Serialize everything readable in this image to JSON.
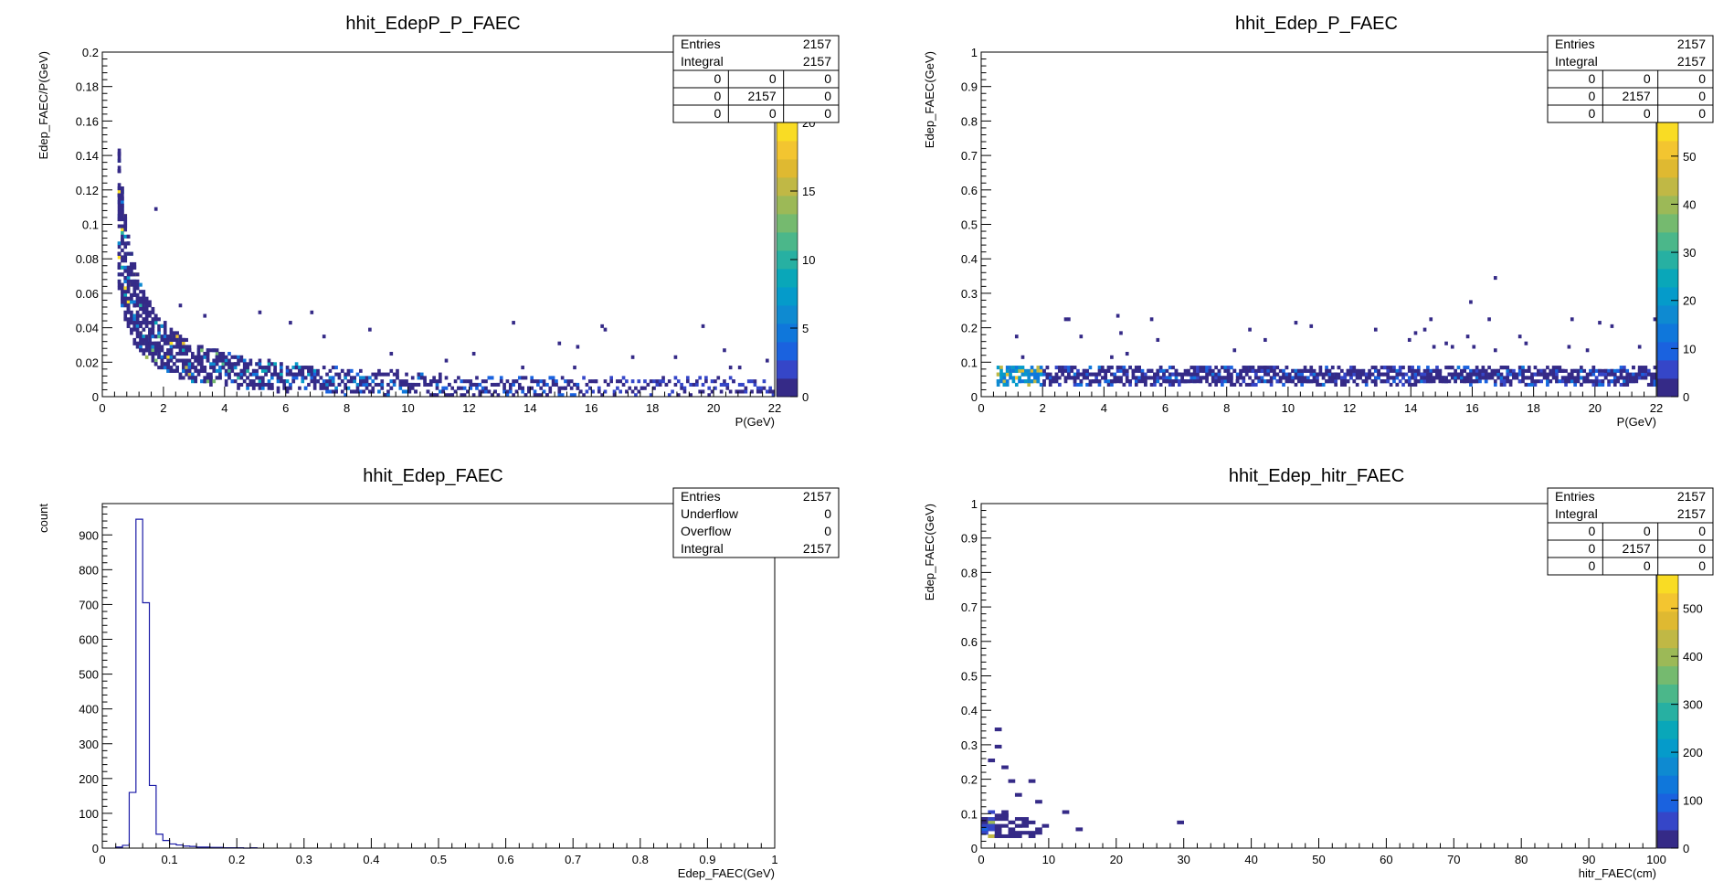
{
  "colors": {
    "hist_line": "#1a1aa6",
    "palette": [
      "#352a87",
      "#3546c8",
      "#1a62df",
      "#0f77db",
      "#0e8ad1",
      "#059bca",
      "#09a7b9",
      "#27b0a2",
      "#4bb78a",
      "#75ba6f",
      "#9cb957",
      "#c0b845",
      "#dfb931",
      "#f3c530",
      "#f9dc24"
    ]
  },
  "chart_data": [
    {
      "id": "edepP-p",
      "type": "heatmap",
      "title": "hhit_EdepP_P_FAEC",
      "xlabel": "P(GeV)",
      "ylabel": "Edep_FAEC/P(GeV)",
      "xlim": [
        0,
        22
      ],
      "ylim": [
        0,
        0.2
      ],
      "xticks": [
        "0",
        "2",
        "4",
        "6",
        "8",
        "10",
        "12",
        "14",
        "16",
        "18",
        "20",
        "22"
      ],
      "yticks": [
        "0",
        "0.02",
        "0.04",
        "0.06",
        "0.08",
        "0.1",
        "0.12",
        "0.14",
        "0.16",
        "0.18",
        "0.2"
      ],
      "zlim": [
        0,
        20
      ],
      "zticks": [
        "0",
        "5",
        "10",
        "15",
        "20"
      ],
      "curve": {
        "a": 0.055,
        "b": 0.0,
        "p_min": 0.5,
        "p_max": 22
      },
      "stats": {
        "rows": [
          [
            "Entries",
            "2157"
          ],
          [
            "Integral",
            "2157"
          ]
        ],
        "grid": [
          [
            "0",
            "0",
            "0"
          ],
          [
            "0",
            "2157",
            "0"
          ],
          [
            "0",
            "0",
            "0"
          ]
        ]
      }
    },
    {
      "id": "edep-p",
      "type": "heatmap",
      "title": "hhit_Edep_P_FAEC",
      "xlabel": "P(GeV)",
      "ylabel": "Edep_FAEC(GeV)",
      "xlim": [
        0,
        22
      ],
      "ylim": [
        0,
        1
      ],
      "xticks": [
        "0",
        "2",
        "4",
        "6",
        "8",
        "10",
        "12",
        "14",
        "16",
        "18",
        "20",
        "22"
      ],
      "yticks": [
        "0",
        "0.1",
        "0.2",
        "0.3",
        "0.4",
        "0.5",
        "0.6",
        "0.7",
        "0.8",
        "0.9",
        "1"
      ],
      "zlim": [
        0,
        57
      ],
      "zticks": [
        "0",
        "10",
        "20",
        "30",
        "40",
        "50"
      ],
      "band": {
        "y_center": 0.06,
        "p_min": 0.5,
        "p_max": 22
      },
      "stats": {
        "rows": [
          [
            "Entries",
            "2157"
          ],
          [
            "Integral",
            "2157"
          ]
        ],
        "grid": [
          [
            "0",
            "0",
            "0"
          ],
          [
            "0",
            "2157",
            "0"
          ],
          [
            "0",
            "0",
            "0"
          ]
        ]
      }
    },
    {
      "id": "edep",
      "type": "bar",
      "title": "hhit_Edep_FAEC",
      "xlabel": "Edep_FAEC(GeV)",
      "ylabel": "count",
      "xlim": [
        0,
        1
      ],
      "ylim": [
        0,
        990
      ],
      "xticks": [
        "0",
        "0.1",
        "0.2",
        "0.3",
        "0.4",
        "0.5",
        "0.6",
        "0.7",
        "0.8",
        "0.9",
        "1"
      ],
      "yticks": [
        "0",
        "100",
        "200",
        "300",
        "400",
        "500",
        "600",
        "700",
        "800",
        "900"
      ],
      "bin_width": 0.01,
      "bin_edges_start": 0.02,
      "values": [
        3,
        8,
        160,
        945,
        705,
        180,
        40,
        22,
        12,
        9,
        6,
        5,
        3,
        3,
        2,
        2,
        1,
        1,
        1,
        0,
        1
      ],
      "stats": {
        "rows": [
          [
            "Entries",
            "2157"
          ],
          [
            "Underflow",
            "0"
          ],
          [
            "Overflow",
            "0"
          ],
          [
            "Integral",
            "2157"
          ]
        ]
      }
    },
    {
      "id": "edep-hitr",
      "type": "heatmap",
      "title": "hhit_Edep_hitr_FAEC",
      "xlabel": "hitr_FAEC(cm)",
      "ylabel": "Edep_FAEC(GeV)",
      "xlim": [
        0,
        100
      ],
      "ylim": [
        0,
        1
      ],
      "xticks": [
        "0",
        "10",
        "20",
        "30",
        "40",
        "50",
        "60",
        "70",
        "80",
        "90",
        "100"
      ],
      "yticks": [
        "0",
        "0.1",
        "0.2",
        "0.3",
        "0.4",
        "0.5",
        "0.6",
        "0.7",
        "0.8",
        "0.9",
        "1"
      ],
      "zlim": [
        0,
        570
      ],
      "zticks": [
        "0",
        "100",
        "200",
        "300",
        "400",
        "500"
      ],
      "stats": {
        "rows": [
          [
            "Entries",
            "2157"
          ],
          [
            "Integral",
            "2157"
          ]
        ],
        "grid": [
          [
            "0",
            "0",
            "0"
          ],
          [
            "0",
            "2157",
            "0"
          ],
          [
            "0",
            "0",
            "0"
          ]
        ]
      }
    }
  ]
}
